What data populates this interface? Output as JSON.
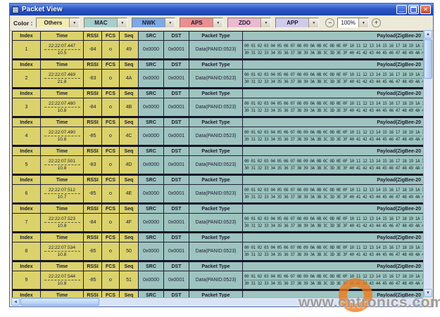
{
  "window": {
    "title": "Packet View",
    "controls": {
      "minimize": "_",
      "maximize": "",
      "close": "✕"
    }
  },
  "toolbar": {
    "color_label": "Color :",
    "filters": [
      {
        "label": "Others",
        "color": "#f2ecae"
      },
      {
        "label": "MAC",
        "color": "#a9cdc9"
      },
      {
        "label": "NWK",
        "color": "#7ea9e2"
      },
      {
        "label": "APS",
        "color": "#e98f8f"
      },
      {
        "label": "ZDO",
        "color": "#ebb9d0"
      },
      {
        "label": "APP",
        "color": "#cfcbe9"
      }
    ],
    "zoom_out": "−",
    "zoom_level": "100%",
    "zoom_in": "+"
  },
  "table": {
    "headers": {
      "index": "Index",
      "time": "Time",
      "rssi": "RSSI",
      "fcs": "FCS",
      "seq": "Seq",
      "src": "SRC",
      "dst": "DST",
      "packet_type": "Packet Type",
      "payload": "Payload(ZigBee-20"
    },
    "payload": {
      "line1": "00 01 02 03 04 05 06 07 08 09 0A 0B 0C 0D 0E 0F 10 11 12 13 14 15 16 17 18 19 1A 1B 1C",
      "line2": "30 31 32 33 34 35 36 37 38 39 3A 3B 3C 3D 3E 3F 40 41 42 43 44 45 46 47 48 49 4A 4B 4C"
    },
    "rows": [
      {
        "index": "1",
        "time": "22:22:07.447",
        "delta": "10.5",
        "rssi": "-84",
        "fcs": "o",
        "seq": "49",
        "src": "0x0000",
        "dst": "0x0001",
        "packet_type": "Data(PANID:0523)"
      },
      {
        "index": "2",
        "time": "22:22:07.469",
        "delta": "21.8",
        "rssi": "-83",
        "fcs": "o",
        "seq": "4A",
        "src": "0x0000",
        "dst": "0x0001",
        "packet_type": "Data(PANID:0523)"
      },
      {
        "index": "3",
        "time": "22:22:07.480",
        "delta": "10.8",
        "rssi": "-84",
        "fcs": "o",
        "seq": "4B",
        "src": "0x0000",
        "dst": "0x0001",
        "packet_type": "Data(PANID:0523)"
      },
      {
        "index": "4",
        "time": "22:22:07.490",
        "delta": "10.8",
        "rssi": "-85",
        "fcs": "o",
        "seq": "4C",
        "src": "0x0000",
        "dst": "0x0001",
        "packet_type": "Data(PANID:0523)"
      },
      {
        "index": "5",
        "time": "22:22:07.501",
        "delta": "10.8",
        "rssi": "-83",
        "fcs": "o",
        "seq": "4D",
        "src": "0x0000",
        "dst": "0x0001",
        "packet_type": "Data(PANID:0523)"
      },
      {
        "index": "6",
        "time": "22:22:07.512",
        "delta": "10.7",
        "rssi": "-85",
        "fcs": "o",
        "seq": "4E",
        "src": "0x0000",
        "dst": "0x0001",
        "packet_type": "Data(PANID:0523)"
      },
      {
        "index": "7",
        "time": "22:22:07.523",
        "delta": "10.8",
        "rssi": "-84",
        "fcs": "o",
        "seq": "4F",
        "src": "0x0000",
        "dst": "0x0001",
        "packet_type": "Data(PANID:0523)"
      },
      {
        "index": "8",
        "time": "22:22:07.534",
        "delta": "10.8",
        "rssi": "-85",
        "fcs": "o",
        "seq": "50",
        "src": "0x0000",
        "dst": "0x0001",
        "packet_type": "Data(PANID:0523)"
      },
      {
        "index": "9",
        "time": "22:22:07.544",
        "delta": "10.8",
        "rssi": "-85",
        "fcs": "o",
        "seq": "51",
        "src": "0x0000",
        "dst": "0x0001",
        "packet_type": "Data(PANID:0523)"
      }
    ]
  },
  "watermark": {
    "url_text": "www.cntronics.com"
  }
}
